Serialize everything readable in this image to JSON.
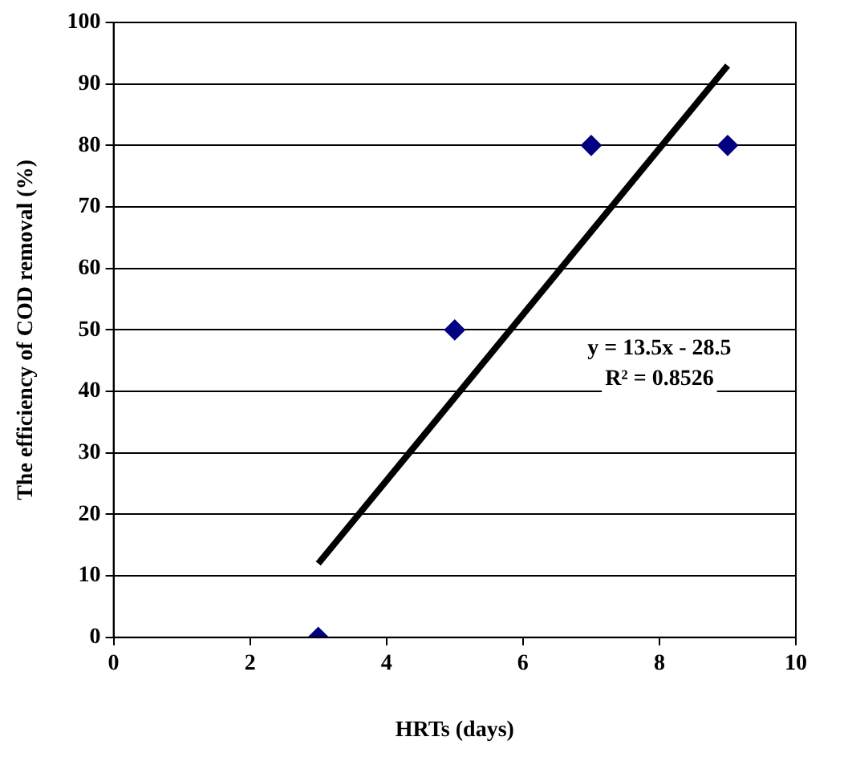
{
  "chart_data": {
    "type": "scatter",
    "xlabel": "HRTs (days)",
    "ylabel": "The efficiency of COD removal (%)",
    "series": [
      {
        "x": [
          3,
          5,
          7,
          9
        ],
        "values": [
          0,
          50,
          80,
          80
        ],
        "color": "#000080",
        "marker": "diamond"
      },
      {
        "type": "line",
        "x": [
          3,
          9
        ],
        "values": [
          12,
          93
        ],
        "color": "#000000",
        "marker": "none"
      }
    ],
    "xlim": [
      0,
      10
    ],
    "xticks": [
      0,
      2,
      4,
      6,
      8,
      10
    ],
    "ylim": [
      0,
      100
    ],
    "yticks": [
      0,
      10,
      20,
      30,
      40,
      50,
      60,
      70,
      80,
      90,
      100
    ],
    "grid": "y",
    "legend": false,
    "annotations": [
      "y = 13.5x - 28.5",
      "R² = 0.8526"
    ]
  }
}
